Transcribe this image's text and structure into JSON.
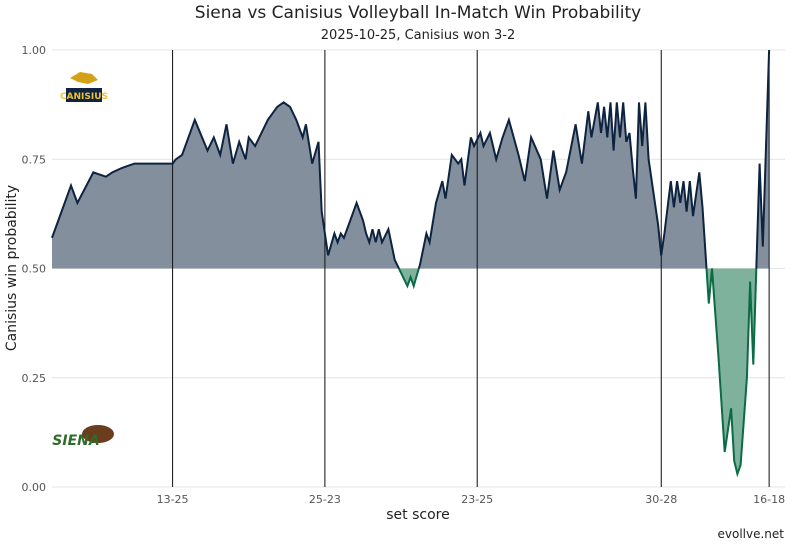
{
  "chart_data": {
    "type": "area-line",
    "title": "Siena vs Canisius Volleyball In-Match Win Probability",
    "subtitle": "2025-10-25, Canisius won 3-2",
    "x_label": "set score",
    "y_label": "Canisius win probability",
    "caption": "evollve.net",
    "logos": {
      "top": "CANISIUS",
      "bottom": "SIENA"
    },
    "baseline": 0.5,
    "color_above": "#0d2340",
    "fill_above": "#838f9d",
    "color_below": "#0b6b45",
    "fill_below": "#7fb29c",
    "xlim": [
      0,
      231
    ],
    "ylim": [
      0,
      1
    ],
    "xticks": [
      {
        "value": 38,
        "label": "13-25"
      },
      {
        "value": 86,
        "label": "25-23"
      },
      {
        "value": 134,
        "label": "23-25"
      },
      {
        "value": 192,
        "label": "30-28"
      },
      {
        "value": 226,
        "label": "16-18"
      }
    ],
    "yticks": [
      {
        "value": 0,
        "label": "0.00"
      },
      {
        "value": 0.25,
        "label": "0.25"
      },
      {
        "value": 0.5,
        "label": "0.50"
      },
      {
        "value": 0.75,
        "label": "0.75"
      },
      {
        "value": 1,
        "label": "1.00"
      }
    ],
    "grid": true,
    "x": [
      0,
      6,
      8,
      13,
      17,
      19,
      22,
      26,
      38,
      39,
      41,
      45,
      49,
      51,
      53,
      55,
      57,
      59,
      61,
      62,
      64,
      68,
      71,
      73,
      75,
      77,
      79,
      80,
      82,
      84,
      85,
      87,
      89,
      90,
      91,
      92,
      94,
      96,
      98,
      99,
      100,
      101,
      102,
      103,
      104,
      106,
      108,
      112,
      113,
      114,
      116,
      118,
      119,
      121,
      123,
      124,
      126,
      128,
      129,
      130,
      132,
      133,
      135,
      136,
      138,
      140,
      142,
      144,
      147,
      149,
      151,
      154,
      156,
      158,
      160,
      162,
      165,
      167,
      169,
      170,
      172,
      173,
      174,
      175,
      176,
      177,
      178,
      179,
      180,
      181,
      182,
      183,
      184,
      185,
      186,
      187,
      188,
      191,
      192,
      193,
      195,
      196,
      197,
      198,
      199,
      200,
      201,
      202,
      204,
      205,
      207,
      208,
      210,
      212,
      214,
      215,
      216,
      217,
      219,
      220,
      221,
      223,
      224,
      226
    ],
    "values": [
      0.57,
      0.69,
      0.65,
      0.72,
      0.71,
      0.72,
      0.73,
      0.74,
      0.74,
      0.75,
      0.76,
      0.84,
      0.77,
      0.8,
      0.76,
      0.83,
      0.74,
      0.79,
      0.75,
      0.8,
      0.78,
      0.84,
      0.87,
      0.88,
      0.87,
      0.84,
      0.8,
      0.83,
      0.74,
      0.79,
      0.63,
      0.53,
      0.58,
      0.56,
      0.58,
      0.57,
      0.61,
      0.65,
      0.61,
      0.58,
      0.56,
      0.59,
      0.56,
      0.59,
      0.56,
      0.59,
      0.52,
      0.46,
      0.48,
      0.46,
      0.51,
      0.58,
      0.56,
      0.65,
      0.7,
      0.66,
      0.76,
      0.74,
      0.75,
      0.69,
      0.8,
      0.78,
      0.81,
      0.78,
      0.81,
      0.75,
      0.8,
      0.84,
      0.76,
      0.7,
      0.8,
      0.75,
      0.66,
      0.77,
      0.68,
      0.72,
      0.83,
      0.74,
      0.86,
      0.8,
      0.88,
      0.81,
      0.87,
      0.8,
      0.88,
      0.77,
      0.88,
      0.8,
      0.88,
      0.79,
      0.81,
      0.73,
      0.66,
      0.88,
      0.78,
      0.88,
      0.75,
      0.6,
      0.53,
      0.58,
      0.7,
      0.64,
      0.7,
      0.65,
      0.7,
      0.63,
      0.7,
      0.62,
      0.72,
      0.64,
      0.42,
      0.5,
      0.3,
      0.08,
      0.18,
      0.06,
      0.03,
      0.05,
      0.25,
      0.47,
      0.28,
      0.74,
      0.55,
      1.0
    ]
  }
}
